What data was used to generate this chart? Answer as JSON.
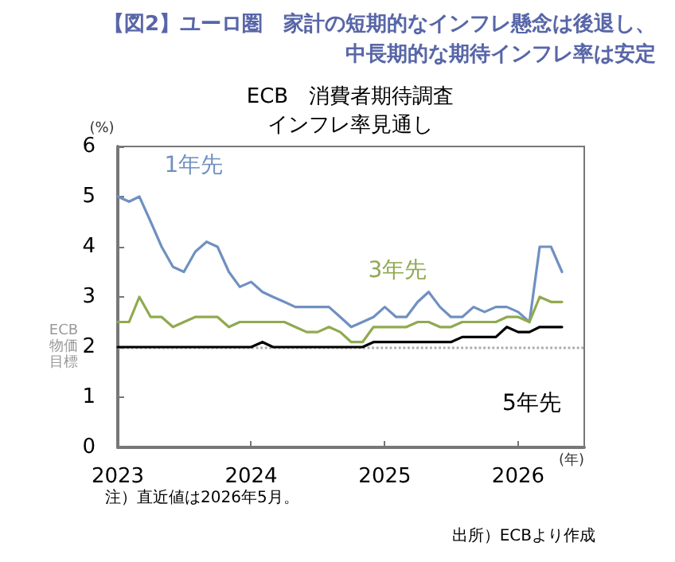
{
  "chart_data": {
    "type": "line",
    "title": "【図2】ユーロ圏　家計の短期的なインフレ懸念は後退し、中長期的な期待インフレ率は安定",
    "subtitle": "ECB　消費者期待調査インフレ率見通し",
    "ylabel": "(%)",
    "xlabel": "(年)",
    "x": [
      "2023-01",
      "2023-02",
      "2023-03",
      "2023-04",
      "2023-05",
      "2023-06",
      "2023-07",
      "2023-08",
      "2023-09",
      "2023-10",
      "2023-11",
      "2023-12",
      "2024-01",
      "2024-02",
      "2024-03",
      "2024-04",
      "2024-05",
      "2024-06",
      "2024-07",
      "2024-08",
      "2024-09",
      "2024-10",
      "2024-11",
      "2024-12",
      "2025-01",
      "2025-02",
      "2025-03",
      "2025-04",
      "2025-05",
      "2025-06",
      "2025-07",
      "2025-08",
      "2025-09",
      "2025-10",
      "2025-11",
      "2025-12",
      "2026-01",
      "2026-02",
      "2026-03",
      "2026-04",
      "2026-05"
    ],
    "series": [
      {
        "name": "1年先",
        "color": "#7090c0",
        "values": [
          5.0,
          4.9,
          5.0,
          4.5,
          4.0,
          3.6,
          3.5,
          3.9,
          4.1,
          4.0,
          3.5,
          3.2,
          3.3,
          3.1,
          3.0,
          2.9,
          2.8,
          2.8,
          2.8,
          2.8,
          2.6,
          2.4,
          2.5,
          2.6,
          2.8,
          2.6,
          2.6,
          2.9,
          3.1,
          2.8,
          2.6,
          2.6,
          2.8,
          2.7,
          2.8,
          2.8,
          2.7,
          2.5,
          4.0,
          4.0,
          3.5
        ]
      },
      {
        "name": "3年先",
        "color": "#8faa50",
        "values": [
          2.5,
          2.5,
          3.0,
          2.6,
          2.6,
          2.4,
          2.5,
          2.6,
          2.6,
          2.6,
          2.4,
          2.5,
          2.5,
          2.5,
          2.5,
          2.5,
          2.4,
          2.3,
          2.3,
          2.4,
          2.3,
          2.1,
          2.1,
          2.4,
          2.4,
          2.4,
          2.4,
          2.5,
          2.5,
          2.4,
          2.4,
          2.5,
          2.5,
          2.5,
          2.5,
          2.6,
          2.6,
          2.5,
          3.0,
          2.9,
          2.9
        ]
      },
      {
        "name": "5年先",
        "color": "#000000",
        "values": [
          2.0,
          2.0,
          2.0,
          2.0,
          2.0,
          2.0,
          2.0,
          2.0,
          2.0,
          2.0,
          2.0,
          2.0,
          2.0,
          2.1,
          2.0,
          2.0,
          2.0,
          2.0,
          2.0,
          2.0,
          2.0,
          2.0,
          2.0,
          2.1,
          2.1,
          2.1,
          2.1,
          2.1,
          2.1,
          2.1,
          2.1,
          2.2,
          2.2,
          2.2,
          2.2,
          2.4,
          2.3,
          2.3,
          2.4,
          2.4,
          2.4
        ]
      }
    ],
    "xlim": [
      "2023-01",
      "2026-07"
    ],
    "xticks": [
      "2023",
      "2024",
      "2025",
      "2026"
    ],
    "ylim": [
      0,
      6
    ],
    "yticks": [
      0,
      1,
      2,
      3,
      4,
      5,
      6
    ],
    "grid": false,
    "legend": false,
    "marker": "none",
    "line_style": "solid",
    "ref_lines": [
      {
        "axis": "y",
        "value": 2,
        "label": "ECB物価目標",
        "color": "#aaaaaa",
        "line_style": "dotted"
      }
    ],
    "annotations": [
      "注）直近値は2026年5月。",
      "出所）ECBより作成"
    ]
  }
}
